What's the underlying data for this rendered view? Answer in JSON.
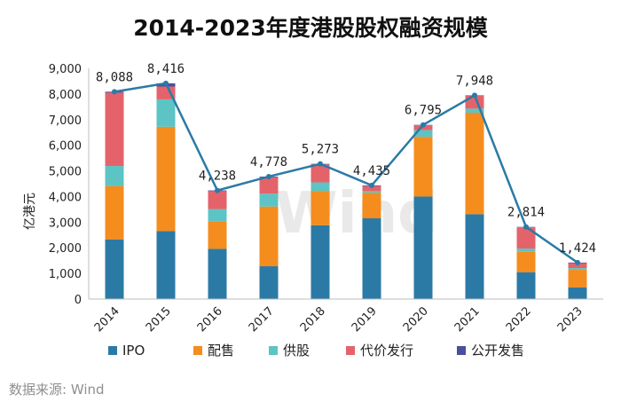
{
  "chart_data": {
    "type": "bar",
    "title": "2014-2023年度港股股权融资规模",
    "ylabel": "亿港元",
    "ylim": [
      0,
      9000
    ],
    "yticks": [
      "0",
      "1,000",
      "2,000",
      "3,000",
      "4,000",
      "5,000",
      "6,000",
      "7,000",
      "8,000",
      "9,000"
    ],
    "categories": [
      "2014",
      "2015",
      "2016",
      "2017",
      "2018",
      "2019",
      "2020",
      "2021",
      "2022",
      "2023"
    ],
    "stacked": true,
    "series": [
      {
        "name": "IPO",
        "color": "#2b7aa6",
        "values": [
          2330,
          2650,
          1960,
          1280,
          2880,
          3150,
          4000,
          3310,
          1050,
          460
        ]
      },
      {
        "name": "配售",
        "color": "#f58c1e",
        "values": [
          2080,
          4070,
          1080,
          2330,
          1340,
          1000,
          2330,
          3960,
          790,
          680
        ]
      },
      {
        "name": "供股",
        "color": "#5cc4c4",
        "values": [
          780,
          1070,
          470,
          500,
          330,
          60,
          260,
          160,
          130,
          70
        ]
      },
      {
        "name": "代价发行",
        "color": "#e4636b",
        "values": [
          2860,
          500,
          700,
          640,
          700,
          200,
          190,
          500,
          830,
          190
        ]
      },
      {
        "name": "公开发售",
        "color": "#4a4fa0",
        "values": [
          38,
          126,
          28,
          28,
          23,
          25,
          15,
          18,
          14,
          24
        ]
      }
    ],
    "line": {
      "values": [
        8088,
        8416,
        4238,
        4778,
        5273,
        4435,
        6795,
        7948,
        2814,
        1424
      ],
      "labels": [
        "8,088",
        "8,416",
        "4,238",
        "4,778",
        "5,273",
        "4,435",
        "6,795",
        "7,948",
        "2,814",
        "1,424"
      ],
      "color": "#2b7aa6"
    },
    "legend_position": "bottom",
    "grid": false
  },
  "source": "数据来源: Wind",
  "watermark": "Wind"
}
